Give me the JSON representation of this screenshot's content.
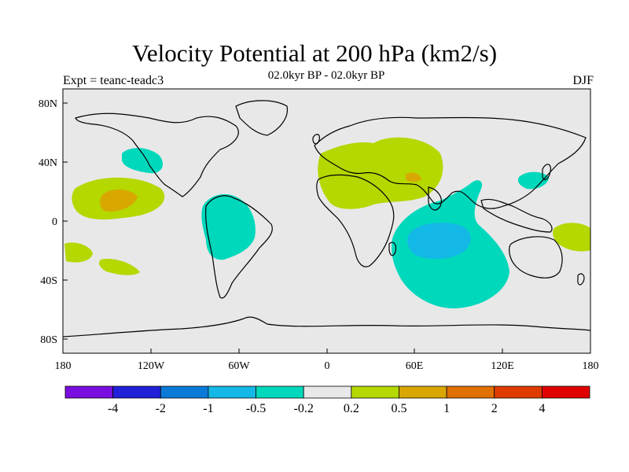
{
  "title": "Velocity Potential at 200 hPa (km2/s)",
  "subtitle": "02.0kyr BP - 02.0kyr BP",
  "left_label": "Expt = teanc-teadc3",
  "right_label": "DJF",
  "lat_ticks": [
    "80N",
    "40N",
    "0",
    "40S",
    "80S"
  ],
  "lon_ticks": [
    "180",
    "120W",
    "60W",
    "0",
    "60E",
    "120E",
    "180"
  ],
  "colorbar": {
    "labels": [
      "-4",
      "-2",
      "-1",
      "-0.5",
      "-0.2",
      "0.2",
      "0.5",
      "1",
      "2",
      "4"
    ],
    "colors": [
      "#7a0ee0",
      "#2020d8",
      "#0a7ad8",
      "#14b8e6",
      "#00d8bc",
      "#e8e8e8",
      "#b4d800",
      "#d8a800",
      "#e07000",
      "#e03c00",
      "#e00000"
    ]
  },
  "colors": {
    "ocean": "#e8e8e8",
    "coast": "#000000"
  }
}
